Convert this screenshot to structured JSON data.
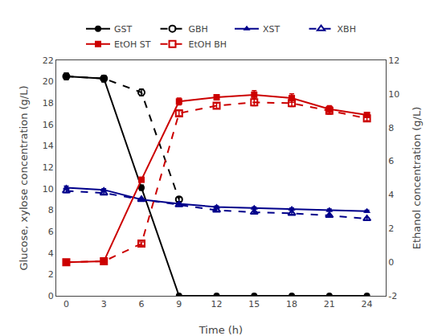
{
  "chart_data": {
    "type": "line",
    "x": [
      0,
      3,
      6,
      9,
      12,
      15,
      18,
      21,
      24
    ],
    "xlabel": "Time (h)",
    "ylabel": "Glucose, xylose concentration (g/L)",
    "y2label": "Ethanol concentration (g/L)",
    "xlim": [
      -0.8,
      25.5
    ],
    "xticks": [
      0,
      3,
      6,
      9,
      12,
      15,
      18,
      21,
      24
    ],
    "ylim": [
      0,
      22
    ],
    "yticks": [
      0,
      2,
      4,
      6,
      8,
      10,
      12,
      14,
      16,
      18,
      20,
      22
    ],
    "y2lim": [
      -2,
      12
    ],
    "y2ticks": [
      -2,
      0,
      2,
      4,
      6,
      8,
      10,
      12
    ],
    "grid": false,
    "legend": "top",
    "series": [
      {
        "name": "GST",
        "color": "#000000",
        "marker": "circle",
        "line_style": "solid",
        "values": [
          20.5,
          20.3,
          10.1,
          0.0,
          0.0,
          0.0,
          0.0,
          0.0,
          0.0
        ],
        "errors": [
          0.3,
          0.3,
          0.25,
          0.0,
          0.0,
          0.0,
          0.0,
          0.0,
          0.0
        ]
      },
      {
        "name": "GBH",
        "color": "#000000",
        "marker": "circle-open",
        "line_style": "dash",
        "x": [
          0,
          3,
          6,
          9
        ],
        "values": [
          20.5,
          20.3,
          19.0,
          9.0
        ],
        "errors": [
          0.3,
          0.3,
          0.3,
          0.2
        ]
      },
      {
        "name": "XST",
        "color": "#00008B",
        "marker": "triangle-up",
        "line_style": "solid",
        "values": [
          10.1,
          9.9,
          9.0,
          8.6,
          8.3,
          8.2,
          8.1,
          8.0,
          7.9
        ],
        "errors": [
          0.15,
          0.1,
          0.1,
          0.1,
          0.1,
          0.1,
          0.1,
          0.1,
          0.1
        ]
      },
      {
        "name": "XBH",
        "color": "#00008B",
        "marker": "triangle-up-open",
        "line_style": "dash",
        "values": [
          9.8,
          9.6,
          9.0,
          8.5,
          8.0,
          7.8,
          7.7,
          7.5,
          7.2
        ],
        "errors": [
          0.15,
          0.1,
          0.1,
          0.1,
          0.1,
          0.1,
          0.1,
          0.1,
          0.1
        ]
      },
      {
        "name": "EtOH ST",
        "color": "#CC0000",
        "marker": "square",
        "line_style": "solid",
        "axis": "y2",
        "values": [
          0.0,
          0.05,
          4.9,
          9.55,
          9.8,
          9.95,
          9.75,
          9.1,
          8.75
        ],
        "errors": [
          0.02,
          0.02,
          0.1,
          0.2,
          0.15,
          0.25,
          0.25,
          0.2,
          0.15
        ]
      },
      {
        "name": "EtOH BH",
        "color": "#CC0000",
        "marker": "square-open",
        "line_style": "dash",
        "axis": "y2",
        "values": [
          0.0,
          0.05,
          1.1,
          8.85,
          9.3,
          9.5,
          9.45,
          9.0,
          8.55
        ],
        "errors": [
          0.02,
          0.02,
          0.1,
          0.15,
          0.15,
          0.2,
          0.2,
          0.2,
          0.15
        ]
      }
    ]
  }
}
